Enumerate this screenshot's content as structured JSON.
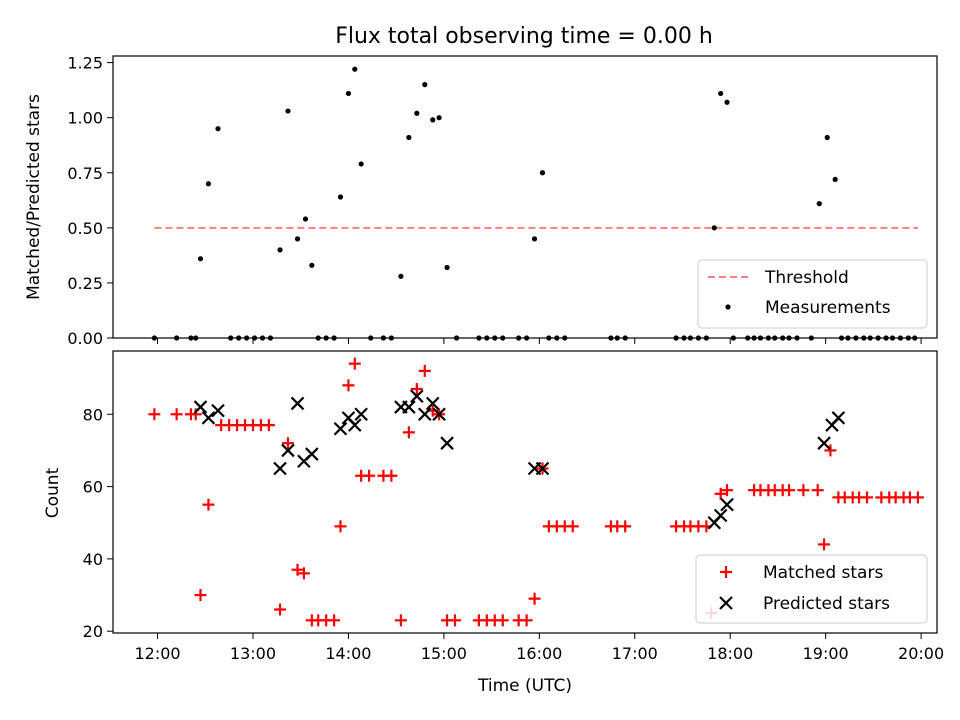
{
  "chart_data": [
    {
      "type": "scatter",
      "title": "Flux total observing time = 0.00 h",
      "xlabel": "",
      "ylabel": "Matched/Predicted stars",
      "xlim": [
        "11:32",
        "20:10"
      ],
      "ylim": [
        0,
        1.28
      ],
      "yticks": [
        "0.00",
        "0.25",
        "0.50",
        "0.75",
        "1.00",
        "1.25"
      ],
      "grid": false,
      "legend_position": "lower-right",
      "threshold": {
        "name": "Threshold",
        "value": 0.5,
        "x_range": [
          "11:58",
          "19:58"
        ],
        "color": "#ff7f7f",
        "style": "dashed"
      },
      "series": [
        {
          "name": "Measurements",
          "color": "#000000",
          "marker": "dot",
          "points": [
            [
              "11:58",
              0.0
            ],
            [
              "12:12",
              0.0
            ],
            [
              "12:21",
              0.0
            ],
            [
              "12:24",
              0.0
            ],
            [
              "12:27",
              0.36
            ],
            [
              "12:32",
              0.7
            ],
            [
              "12:38",
              0.95
            ],
            [
              "12:46",
              0.0
            ],
            [
              "12:51",
              0.0
            ],
            [
              "12:56",
              0.0
            ],
            [
              "13:01",
              0.0
            ],
            [
              "13:06",
              0.0
            ],
            [
              "13:11",
              0.0
            ],
            [
              "13:17",
              0.4
            ],
            [
              "13:22",
              1.03
            ],
            [
              "13:28",
              0.45
            ],
            [
              "13:33",
              0.54
            ],
            [
              "13:37",
              0.33
            ],
            [
              "13:41",
              0.0
            ],
            [
              "13:46",
              0.0
            ],
            [
              "13:51",
              0.0
            ],
            [
              "13:55",
              0.64
            ],
            [
              "14:00",
              1.11
            ],
            [
              "14:04",
              1.22
            ],
            [
              "14:08",
              0.79
            ],
            [
              "14:14",
              0.0
            ],
            [
              "14:22",
              0.0
            ],
            [
              "14:27",
              0.0
            ],
            [
              "14:33",
              0.28
            ],
            [
              "14:38",
              0.91
            ],
            [
              "14:43",
              1.02
            ],
            [
              "14:48",
              1.15
            ],
            [
              "14:53",
              0.99
            ],
            [
              "14:57",
              1.0
            ],
            [
              "15:02",
              0.32
            ],
            [
              "15:08",
              0.0
            ],
            [
              "15:22",
              0.0
            ],
            [
              "15:27",
              0.0
            ],
            [
              "15:32",
              0.0
            ],
            [
              "15:37",
              0.0
            ],
            [
              "15:47",
              0.0
            ],
            [
              "15:52",
              0.0
            ],
            [
              "15:57",
              0.45
            ],
            [
              "16:02",
              0.75
            ],
            [
              "16:06",
              0.0
            ],
            [
              "16:11",
              0.0
            ],
            [
              "16:16",
              0.0
            ],
            [
              "16:45",
              0.0
            ],
            [
              "16:49",
              0.0
            ],
            [
              "16:54",
              0.0
            ],
            [
              "17:26",
              0.0
            ],
            [
              "17:31",
              0.0
            ],
            [
              "17:35",
              0.0
            ],
            [
              "17:40",
              0.0
            ],
            [
              "17:45",
              0.0
            ],
            [
              "17:50",
              0.5
            ],
            [
              "17:54",
              1.11
            ],
            [
              "17:58",
              1.07
            ],
            [
              "18:02",
              0.0
            ],
            [
              "18:11",
              0.0
            ],
            [
              "18:15",
              0.0
            ],
            [
              "18:19",
              0.0
            ],
            [
              "18:24",
              0.0
            ],
            [
              "18:28",
              0.0
            ],
            [
              "18:33",
              0.0
            ],
            [
              "18:37",
              0.0
            ],
            [
              "18:42",
              0.0
            ],
            [
              "18:51",
              0.0
            ],
            [
              "18:56",
              0.61
            ],
            [
              "19:01",
              0.91
            ],
            [
              "19:06",
              0.72
            ],
            [
              "19:10",
              0.0
            ],
            [
              "19:14",
              0.0
            ],
            [
              "19:19",
              0.0
            ],
            [
              "19:24",
              0.0
            ],
            [
              "19:28",
              0.0
            ],
            [
              "19:33",
              0.0
            ],
            [
              "19:38",
              0.0
            ],
            [
              "19:42",
              0.0
            ],
            [
              "19:47",
              0.0
            ],
            [
              "19:52",
              0.0
            ],
            [
              "19:56",
              0.0
            ]
          ]
        }
      ]
    },
    {
      "type": "scatter",
      "title": "",
      "xlabel": "Time (UTC)",
      "ylabel": "Count",
      "xlim": [
        "11:32",
        "20:10"
      ],
      "xticks": [
        "12:00",
        "13:00",
        "14:00",
        "15:00",
        "16:00",
        "17:00",
        "18:00",
        "19:00",
        "20:00"
      ],
      "ylim": [
        19.5,
        97.5
      ],
      "yticks": [
        "20",
        "40",
        "60",
        "80"
      ],
      "grid": false,
      "legend_position": "lower-right",
      "series": [
        {
          "name": "Matched stars",
          "color": "#ff0000",
          "marker": "plus",
          "points": [
            [
              "11:58",
              80
            ],
            [
              "12:12",
              80
            ],
            [
              "12:21",
              80
            ],
            [
              "12:24",
              80
            ],
            [
              "12:27",
              30
            ],
            [
              "12:32",
              55
            ],
            [
              "12:40",
              77
            ],
            [
              "12:45",
              77
            ],
            [
              "12:50",
              77
            ],
            [
              "12:55",
              77
            ],
            [
              "13:00",
              77
            ],
            [
              "13:05",
              77
            ],
            [
              "13:10",
              77
            ],
            [
              "13:17",
              26
            ],
            [
              "13:22",
              72
            ],
            [
              "13:28",
              37
            ],
            [
              "13:32",
              36
            ],
            [
              "13:37",
              23
            ],
            [
              "13:41",
              23
            ],
            [
              "13:46",
              23
            ],
            [
              "13:51",
              23
            ],
            [
              "13:55",
              49
            ],
            [
              "14:00",
              88
            ],
            [
              "14:04",
              94
            ],
            [
              "14:08",
              63
            ],
            [
              "14:13",
              63
            ],
            [
              "14:22",
              63
            ],
            [
              "14:27",
              63
            ],
            [
              "14:33",
              23
            ],
            [
              "14:38",
              75
            ],
            [
              "14:43",
              87
            ],
            [
              "14:48",
              92
            ],
            [
              "14:53",
              81
            ],
            [
              "14:57",
              80
            ],
            [
              "15:02",
              23
            ],
            [
              "15:07",
              23
            ],
            [
              "15:22",
              23
            ],
            [
              "15:27",
              23
            ],
            [
              "15:32",
              23
            ],
            [
              "15:37",
              23
            ],
            [
              "15:47",
              23
            ],
            [
              "15:52",
              23
            ],
            [
              "15:57",
              29
            ],
            [
              "16:02",
              65
            ],
            [
              "16:06",
              49
            ],
            [
              "16:11",
              49
            ],
            [
              "16:16",
              49
            ],
            [
              "16:21",
              49
            ],
            [
              "16:45",
              49
            ],
            [
              "16:49",
              49
            ],
            [
              "16:54",
              49
            ],
            [
              "17:26",
              49
            ],
            [
              "17:31",
              49
            ],
            [
              "17:35",
              49
            ],
            [
              "17:40",
              49
            ],
            [
              "17:45",
              49
            ],
            [
              "17:48",
              25
            ],
            [
              "17:54",
              58
            ],
            [
              "17:58",
              59
            ],
            [
              "18:15",
              59
            ],
            [
              "18:19",
              59
            ],
            [
              "18:24",
              59
            ],
            [
              "18:28",
              59
            ],
            [
              "18:33",
              59
            ],
            [
              "18:37",
              59
            ],
            [
              "18:46",
              59
            ],
            [
              "18:55",
              59
            ],
            [
              "18:59",
              44
            ],
            [
              "19:03",
              70
            ],
            [
              "19:08",
              57
            ],
            [
              "19:12",
              57
            ],
            [
              "19:17",
              57
            ],
            [
              "19:21",
              57
            ],
            [
              "19:26",
              57
            ],
            [
              "19:35",
              57
            ],
            [
              "19:40",
              57
            ],
            [
              "19:44",
              57
            ],
            [
              "19:49",
              57
            ],
            [
              "19:53",
              57
            ],
            [
              "19:58",
              57
            ]
          ]
        },
        {
          "name": "Predicted stars",
          "color": "#000000",
          "marker": "x",
          "points": [
            [
              "12:27",
              82
            ],
            [
              "12:32",
              79
            ],
            [
              "12:38",
              81
            ],
            [
              "13:17",
              65
            ],
            [
              "13:22",
              70
            ],
            [
              "13:28",
              83
            ],
            [
              "13:32",
              67
            ],
            [
              "13:37",
              69
            ],
            [
              "13:55",
              76
            ],
            [
              "14:00",
              79
            ],
            [
              "14:04",
              77
            ],
            [
              "14:08",
              80
            ],
            [
              "14:33",
              82
            ],
            [
              "14:38",
              82
            ],
            [
              "14:43",
              85
            ],
            [
              "14:48",
              80
            ],
            [
              "14:53",
              83
            ],
            [
              "14:57",
              80
            ],
            [
              "15:02",
              72
            ],
            [
              "15:57",
              65
            ],
            [
              "16:02",
              65
            ],
            [
              "17:50",
              50
            ],
            [
              "17:54",
              52
            ],
            [
              "17:58",
              55
            ],
            [
              "18:59",
              72
            ],
            [
              "19:04",
              77
            ],
            [
              "19:08",
              79
            ]
          ]
        }
      ]
    }
  ]
}
